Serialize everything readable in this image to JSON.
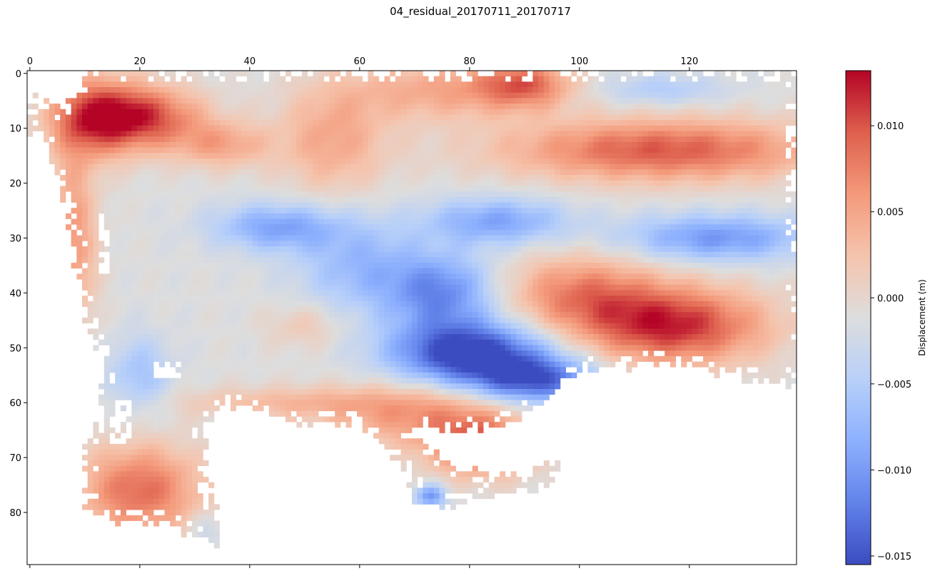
{
  "chart_data": {
    "type": "heatmap",
    "title": "04_residual_20170711_20170717",
    "xlabel": "",
    "ylabel": "",
    "x_range": [
      0,
      140
    ],
    "y_range": [
      0,
      90
    ],
    "x_ticks": [
      "0",
      "20",
      "40",
      "60",
      "80",
      "100",
      "120"
    ],
    "y_ticks": [
      "0",
      "10",
      "20",
      "30",
      "40",
      "50",
      "60",
      "70",
      "80"
    ],
    "x_axis_position": "top",
    "y_axis_inverted": true,
    "colormap": "coolwarm",
    "colorbar": {
      "label": "Displacement (m)",
      "range": [
        -0.0155,
        0.0132
      ],
      "ticks": [
        "0.010",
        "0.005",
        "0.000",
        "−0.005",
        "−0.010",
        "−0.015"
      ],
      "tick_values": [
        0.01,
        0.005,
        0.0,
        -0.005,
        -0.01,
        -0.015
      ]
    },
    "features": [
      {
        "x": 12,
        "y": 8,
        "amp": 0.012,
        "sx": 6,
        "sy": 5
      },
      {
        "x": 22,
        "y": 8,
        "amp": 0.01,
        "sx": 7,
        "sy": 4
      },
      {
        "x": 8,
        "y": 30,
        "amp": 0.007,
        "sx": 3,
        "sy": 12
      },
      {
        "x": 20,
        "y": 76,
        "amp": 0.01,
        "sx": 8,
        "sy": 6
      },
      {
        "x": 35,
        "y": 13,
        "amp": 0.006,
        "sx": 6,
        "sy": 3
      },
      {
        "x": 55,
        "y": 12,
        "amp": 0.006,
        "sx": 7,
        "sy": 7
      },
      {
        "x": 75,
        "y": 3,
        "amp": 0.006,
        "sx": 12,
        "sy": 4
      },
      {
        "x": 90,
        "y": 2,
        "amp": 0.009,
        "sx": 6,
        "sy": 3
      },
      {
        "x": 115,
        "y": 14,
        "amp": 0.011,
        "sx": 20,
        "sy": 4
      },
      {
        "x": 117,
        "y": 46,
        "amp": 0.013,
        "sx": 12,
        "sy": 5
      },
      {
        "x": 100,
        "y": 40,
        "amp": 0.008,
        "sx": 10,
        "sy": 5
      },
      {
        "x": 70,
        "y": 62,
        "amp": 0.007,
        "sx": 12,
        "sy": 4
      },
      {
        "x": 82,
        "y": 68,
        "amp": 0.01,
        "sx": 7,
        "sy": 4
      },
      {
        "x": 50,
        "y": 46,
        "amp": 0.003,
        "sx": 5,
        "sy": 3
      },
      {
        "x": 45,
        "y": 60,
        "amp": 0.004,
        "sx": 14,
        "sy": 2
      },
      {
        "x": 80,
        "y": 51,
        "amp": -0.016,
        "sx": 10,
        "sy": 4
      },
      {
        "x": 92,
        "y": 56,
        "amp": -0.012,
        "sx": 8,
        "sy": 3
      },
      {
        "x": 75,
        "y": 40,
        "amp": -0.01,
        "sx": 7,
        "sy": 5
      },
      {
        "x": 45,
        "y": 28,
        "amp": -0.008,
        "sx": 8,
        "sy": 3
      },
      {
        "x": 85,
        "y": 27,
        "amp": -0.008,
        "sx": 9,
        "sy": 3
      },
      {
        "x": 125,
        "y": 30,
        "amp": -0.009,
        "sx": 12,
        "sy": 3
      },
      {
        "x": 60,
        "y": 35,
        "amp": -0.006,
        "sx": 8,
        "sy": 6
      },
      {
        "x": 20,
        "y": 55,
        "amp": -0.005,
        "sx": 4,
        "sy": 5
      },
      {
        "x": 115,
        "y": 3,
        "amp": -0.004,
        "sx": 8,
        "sy": 2
      },
      {
        "x": 73,
        "y": 77,
        "amp": -0.009,
        "sx": 2,
        "sy": 1.5
      },
      {
        "x": 32,
        "y": 83,
        "amp": -0.003,
        "sx": 2,
        "sy": 2
      }
    ]
  }
}
